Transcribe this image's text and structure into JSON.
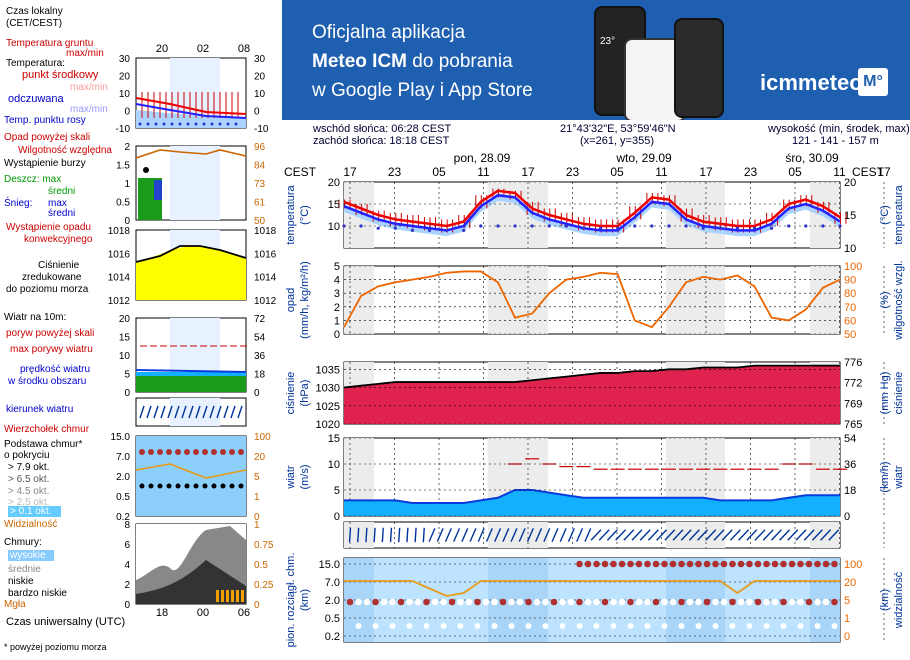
{
  "banner": {
    "line1": "Oficjalna aplikacja",
    "line2_bold": "Meteo ICM",
    "line2_rest": " do pobrania",
    "line3": "w Google Play i App Store",
    "logo_text": "icmmeteo",
    "logo_badge": "M°",
    "phone_temp": "23°"
  },
  "info": {
    "sunrise": "wschód słońca: 06:28 CEST",
    "sunset": "zachód słońca: 18:18 CEST",
    "coords": "21°43'32\"E, 53°59'46\"N",
    "grid": "(x=261,  y=355)",
    "alt_label": "wysokość (min, środek, max)",
    "alt_values": "121 - 141 - 157 m"
  },
  "timeline": {
    "tz": "CEST",
    "tz_right": "CEST",
    "days": [
      "pon, 28.09",
      "wto, 29.09",
      "śro, 30.09"
    ],
    "hours": [
      "17",
      "23",
      "05",
      "11",
      "17",
      "23",
      "05",
      "11",
      "17",
      "23",
      "05",
      "11",
      "17"
    ]
  },
  "legend": {
    "local_time_l1": "Czas lokalny",
    "local_time_l2": "(CET/CEST)",
    "legend_hours": [
      "20",
      "02",
      "08"
    ],
    "utc_hours": [
      "18",
      "00",
      "06"
    ],
    "ground_temp": "Temperatura gruntu",
    "ground_maxmin": "max/min",
    "temp": "Temperatura:",
    "mid_point": "punkt środkowy",
    "max_min": "max/min",
    "felt": "odczuwana",
    "felt_maxmin": "max/min",
    "dew": "Temp. punktu rosy",
    "precip_above": "Opad powyżej skali",
    "humidity": "Wilgotność względna",
    "storm": "Wystąpienie burzy",
    "rain": "Deszcz: max",
    "rain_mid": "średni",
    "snow": "Śnieg:",
    "snow_max": "max",
    "snow_mid": "średni",
    "precip_occ_l1": "Wystąpienie opadu",
    "precip_occ_l2": "konwekcyjnego",
    "pressure_l1": "Ciśnienie",
    "pressure_l2": "zredukowane",
    "pressure_l3": "do poziomu morza",
    "wind_label": "Wiatr na 10m:",
    "gust_above": "poryw powyżej skali",
    "gust_max": "max porywy wiatru",
    "wind_speed_l1": "prędkość wiatru",
    "wind_speed_l2": "w środku obszaru",
    "wind_dir": "kierunek wiatru",
    "cloud_top": "Wierzchołek chmur",
    "cloud_base_l1": "Podstawa chmur*",
    "cloud_base_l2": "o pokryciu",
    "okt1": "> 7.9 okt.",
    "okt2": "> 6.5 okt.",
    "okt3": "> 4.5 okt.",
    "okt4": "> 2.5 okt.",
    "okt5": "> 0.1 okt.",
    "visibility": "Widzialność",
    "clouds": "Chmury:",
    "high": "wysokie",
    "medium": "średnie",
    "low": "niskie",
    "very_low": "bardzo niskie",
    "fog": "Mgła",
    "utc": "Czas uniwersalny (UTC)",
    "footnote": "* powyżej poziomu morza"
  },
  "axis_labels": {
    "temp_left": "temperatura",
    "temp_left_unit": "(°C)",
    "temp_right": "temperatura",
    "temp_right_unit": "(°C)",
    "precip_left": "opad",
    "precip_left_unit": "(mm/h, kg/m²/h)",
    "precip_right": "wilgotność wzgl.",
    "precip_right_unit": "(%)",
    "pres_left": "ciśnienie",
    "pres_left_unit": "(hPa)",
    "pres_right": "ciśnienie",
    "pres_right_unit": "(mm Hg)",
    "wind_left": "wiatr",
    "wind_left_unit": "(m/s)",
    "wind_right": "wiatr",
    "wind_right_unit": "(km/h)",
    "cloud_left": "pion. rozciągł. chm.",
    "cloud_left_unit": "(km)",
    "cloud_right": "widzialność",
    "cloud_right_unit": "(km)"
  },
  "chart_data": [
    {
      "type": "line",
      "panel": "temperature",
      "ylim": [
        5,
        20
      ],
      "yticks": [
        10,
        15,
        20
      ],
      "y2ticks": [
        10,
        15,
        20
      ],
      "series": [
        {
          "values": [
            15.5,
            14,
            12.5,
            11.5,
            11,
            10.5,
            10,
            11,
            15.5,
            18,
            17.5,
            14,
            12.5,
            11.5,
            10.5,
            10,
            10,
            13,
            16.5,
            16,
            12.5,
            11,
            10.5,
            10,
            10,
            11.5,
            15,
            16,
            14.5,
            12
          ],
          "color": "#e00"
        },
        {
          "values": [
            14.5,
            13,
            11.5,
            10.5,
            10,
            9.5,
            9,
            10,
            14.5,
            17,
            16.5,
            13,
            11.5,
            10.5,
            9.5,
            9,
            9,
            12,
            15.5,
            15,
            11.5,
            10,
            9.5,
            9,
            9,
            10.5,
            14,
            15,
            13.5,
            11
          ],
          "color": "#22f"
        }
      ],
      "dew_values": [
        10,
        10,
        9.5,
        9.5,
        9,
        9,
        9,
        9,
        10,
        10,
        10,
        10,
        10,
        10,
        9.5,
        9.5,
        9.5,
        10,
        10,
        10,
        10,
        9.5,
        9.5,
        9.5,
        9.5,
        9.5,
        10,
        10,
        10,
        10
      ],
      "max_values": [
        16,
        15,
        13.5,
        13,
        12.5,
        12,
        11.5,
        12.5,
        17,
        18.5,
        18,
        15.5,
        14,
        13,
        12,
        11.5,
        11.5,
        14.5,
        17.5,
        17,
        14,
        12.5,
        12,
        11.5,
        11.5,
        13,
        16,
        17,
        15.5,
        13
      ],
      "min_values": [
        14,
        12.5,
        11,
        10,
        9.5,
        9,
        8.5,
        9.5,
        14,
        16.5,
        16,
        12.5,
        11,
        10,
        9,
        8.5,
        8.5,
        11.5,
        15,
        14.5,
        11,
        9.5,
        9,
        8.5,
        8.5,
        10,
        13.5,
        14.5,
        13,
        10.5
      ]
    },
    {
      "type": "line",
      "panel": "precipitation",
      "ylim": [
        0,
        5
      ],
      "yticks": [
        0,
        1,
        2,
        3,
        4,
        5
      ],
      "y2ticks": [
        50,
        60,
        70,
        80,
        90,
        100
      ],
      "series": [
        {
          "values": [
            55,
            78,
            85,
            88,
            90,
            92,
            95,
            96,
            96,
            88,
            62,
            65,
            80,
            90,
            92,
            95,
            94,
            60,
            55,
            70,
            88,
            92,
            90,
            93,
            85,
            62,
            60,
            68,
            84,
            90
          ],
          "color": "#e60"
        }
      ]
    },
    {
      "type": "area",
      "panel": "pressure",
      "ylim": [
        1020,
        1037
      ],
      "yticks": [
        1020,
        1025,
        1030,
        1035
      ],
      "y2ticks": [
        765,
        769,
        772,
        776
      ],
      "series": [
        {
          "values": [
            1030,
            1030.5,
            1031,
            1031.5,
            1031.5,
            1031.5,
            1031.5,
            1031.5,
            1031.5,
            1031.5,
            1031.5,
            1032,
            1032.5,
            1033,
            1033.5,
            1034,
            1034,
            1034.5,
            1034.5,
            1035,
            1035,
            1035.5,
            1035.5,
            1035.5,
            1036,
            1036,
            1036,
            1036,
            1036,
            1036
          ],
          "color": "#d81e4a"
        }
      ]
    },
    {
      "type": "area",
      "panel": "wind",
      "ylim": [
        0,
        15
      ],
      "yticks": [
        0,
        5,
        10,
        15
      ],
      "y2ticks": [
        0,
        18,
        36,
        54
      ],
      "series": [
        {
          "values": [
            3,
            3,
            3,
            3,
            2.5,
            2.5,
            2.5,
            2.5,
            3,
            3.5,
            5,
            5,
            4.5,
            4,
            3.5,
            3.5,
            3.5,
            3.5,
            3.5,
            3.5,
            3.5,
            3.5,
            3,
            3,
            3,
            3,
            3.5,
            4,
            4,
            4
          ],
          "color": "#0a3cdc"
        }
      ],
      "gust_values": [
        null,
        null,
        null,
        null,
        null,
        null,
        null,
        null,
        null,
        null,
        10,
        11,
        10,
        9.5,
        9.5,
        9,
        9,
        9,
        9,
        9,
        9,
        9,
        9,
        9,
        9,
        9,
        10,
        10,
        9,
        9
      ]
    },
    {
      "type": "scatter",
      "panel": "clouds",
      "ylim": [
        0,
        15
      ],
      "yticks": [
        0.2,
        0.5,
        1.0,
        2.0,
        7.0,
        15.0
      ],
      "y2ticks": [
        0,
        1,
        5,
        20,
        100
      ],
      "visibility_values": [
        20,
        20,
        20,
        20,
        20,
        15,
        10,
        12,
        20,
        20,
        20,
        20,
        20,
        20,
        20,
        20,
        20,
        20,
        20,
        20,
        20,
        20,
        20,
        12,
        20,
        20,
        20,
        20,
        20,
        20
      ]
    }
  ],
  "legend_ticks": {
    "temp": [
      30,
      20,
      10,
      0,
      -10
    ],
    "precip": [
      2.0,
      1.5,
      1.0,
      0.5,
      0
    ],
    "hum": [
      96,
      84,
      73,
      61,
      50
    ],
    "pres": [
      1018,
      1016,
      1014,
      1012
    ],
    "wind": [
      20,
      15,
      10,
      5,
      0
    ],
    "wind_kmh": [
      72,
      54,
      36,
      18,
      0
    ],
    "cloud": [
      15.0,
      7.0,
      2.0,
      0.5,
      0.2
    ],
    "vis": [
      100,
      20,
      5,
      1,
      0
    ],
    "clouds": [
      8,
      6,
      4,
      2,
      0
    ],
    "clouds_frac": [
      1,
      0.75,
      0.5,
      0.25,
      0
    ]
  }
}
